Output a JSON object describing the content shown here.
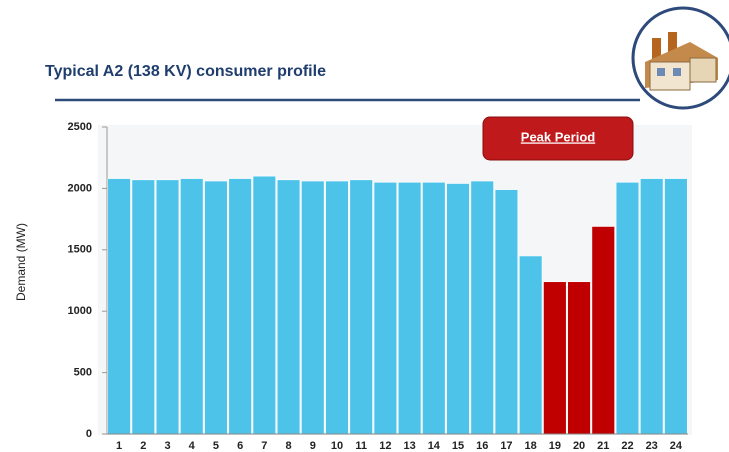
{
  "chart_data": {
    "type": "bar",
    "title": "Typical A2 (138 KV) consumer profile",
    "y_label": "Demand (MW)",
    "annotation": "Peak Period",
    "categories": [
      "1",
      "2",
      "3",
      "4",
      "5",
      "6",
      "7",
      "8",
      "9",
      "10",
      "11",
      "12",
      "13",
      "14",
      "15",
      "16",
      "17",
      "18",
      "19",
      "20",
      "21",
      "22",
      "23",
      "24"
    ],
    "values": [
      2080,
      2070,
      2070,
      2080,
      2060,
      2080,
      2100,
      2070,
      2060,
      2060,
      2070,
      2050,
      2050,
      2050,
      2040,
      2060,
      1990,
      1450,
      1240,
      1240,
      1690,
      2050,
      2080,
      2080
    ],
    "colors": [
      "#4ec3ea",
      "#4ec3ea",
      "#4ec3ea",
      "#4ec3ea",
      "#4ec3ea",
      "#4ec3ea",
      "#4ec3ea",
      "#4ec3ea",
      "#4ec3ea",
      "#4ec3ea",
      "#4ec3ea",
      "#4ec3ea",
      "#4ec3ea",
      "#4ec3ea",
      "#4ec3ea",
      "#4ec3ea",
      "#4ec3ea",
      "#4ec3ea",
      "#c00000",
      "#c00000",
      "#c00000",
      "#4ec3ea",
      "#4ec3ea",
      "#4ec3ea"
    ],
    "ylim": [
      0,
      2500
    ],
    "yticks": [
      0,
      500,
      1000,
      1500,
      2000,
      2500
    ],
    "grid": false
  }
}
